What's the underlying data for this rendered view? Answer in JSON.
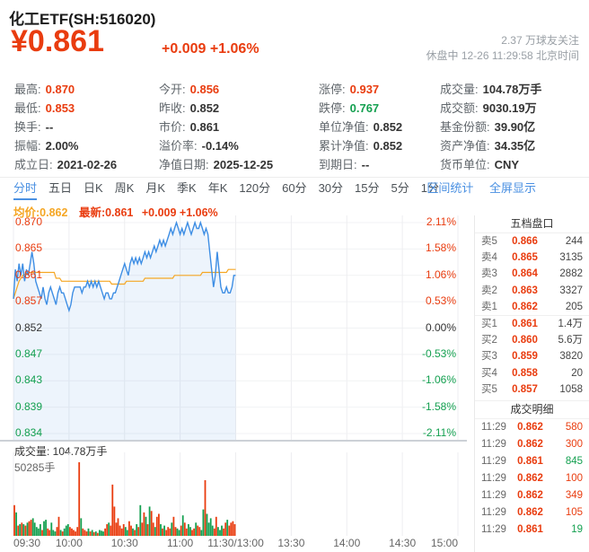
{
  "header": {
    "title": "化工ETF(SH:516020)",
    "price": "¥0.861",
    "change": "+0.009 +1.06%",
    "followers": "2.37 万球友关注",
    "market_status": "休盘中 12-26 11:29:58 北京时间"
  },
  "stats": {
    "columns": [
      {
        "items": [
          {
            "label": "最高:",
            "value": "0.870",
            "cls": "up"
          },
          {
            "label": "最低:",
            "value": "0.853",
            "cls": "up"
          },
          {
            "label": "换手:",
            "value": "--",
            "cls": ""
          },
          {
            "label": "振幅:",
            "value": "2.00%",
            "cls": ""
          },
          {
            "label": "成立日:",
            "value": "2021-02-26",
            "cls": ""
          }
        ]
      },
      {
        "items": [
          {
            "label": "今开:",
            "value": "0.856",
            "cls": "up"
          },
          {
            "label": "昨收:",
            "value": "0.852",
            "cls": ""
          },
          {
            "label": "市价:",
            "value": "0.861",
            "cls": ""
          },
          {
            "label": "溢价率:",
            "value": "-0.14%",
            "cls": ""
          },
          {
            "label": "净值日期:",
            "value": "2025-12-25",
            "cls": ""
          }
        ]
      },
      {
        "items": [
          {
            "label": "涨停:",
            "value": "0.937",
            "cls": "up"
          },
          {
            "label": "跌停:",
            "value": "0.767",
            "cls": "down"
          },
          {
            "label": "单位净值:",
            "value": "0.852",
            "cls": ""
          },
          {
            "label": "累计净值:",
            "value": "0.852",
            "cls": ""
          },
          {
            "label": "到期日:",
            "value": "--",
            "cls": ""
          }
        ]
      },
      {
        "items": [
          {
            "label": "成交量:",
            "value": "104.78万手",
            "cls": ""
          },
          {
            "label": "成交额:",
            "value": "9030.19万",
            "cls": ""
          },
          {
            "label": "基金份额:",
            "value": "39.90亿",
            "cls": ""
          },
          {
            "label": "资产净值:",
            "value": "34.35亿",
            "cls": ""
          },
          {
            "label": "货币单位:",
            "value": "CNY",
            "cls": ""
          }
        ]
      }
    ]
  },
  "tabs": {
    "items": [
      "分时",
      "五日",
      "日K",
      "周K",
      "月K",
      "季K",
      "年K",
      "120分",
      "60分",
      "30分",
      "15分",
      "5分",
      "1分"
    ],
    "active_index": 0,
    "range_stat": "区间统计",
    "fullscreen": "全屏显示"
  },
  "legend": {
    "avg": "均价:0.862",
    "last": "最新:0.861",
    "change": "+0.009 +1.06%"
  },
  "chart_data": {
    "type": "line",
    "title": "化工ETF(SH:516020) 分时",
    "prev_close": 0.852,
    "price_range": [
      0.834,
      0.87
    ],
    "minutes_total": 240,
    "x_session_labels": [
      "09:30",
      "10:00",
      "10:30",
      "11:00",
      "11:30/13:00",
      "13:30",
      "14:00",
      "14:30",
      "15:00"
    ],
    "y_ticks": [
      {
        "price": "0.870",
        "pct": "2.11%",
        "cls": "up"
      },
      {
        "price": "0.865",
        "pct": "1.58%",
        "cls": "up"
      },
      {
        "price": "0.861",
        "pct": "1.06%",
        "cls": "up"
      },
      {
        "price": "0.857",
        "pct": "0.53%",
        "cls": "up"
      },
      {
        "price": "0.852",
        "pct": "0.00%",
        "cls": "flat"
      },
      {
        "price": "0.847",
        "pct": "-0.53%",
        "cls": "down"
      },
      {
        "price": "0.843",
        "pct": "-1.06%",
        "cls": "down"
      },
      {
        "price": "0.839",
        "pct": "-1.58%",
        "cls": "down"
      },
      {
        "price": "0.834",
        "pct": "-2.11%",
        "cls": "down"
      }
    ],
    "series": [
      {
        "name": "price",
        "color": "#3e8ee4",
        "values": [
          0.857,
          0.862,
          0.86,
          0.863,
          0.861,
          0.863,
          0.86,
          0.862,
          0.861,
          0.863,
          0.865,
          0.863,
          0.86,
          0.859,
          0.858,
          0.857,
          0.859,
          0.857,
          0.856,
          0.858,
          0.859,
          0.858,
          0.857,
          0.856,
          0.858,
          0.859,
          0.858,
          0.858,
          0.857,
          0.856,
          0.855,
          0.856,
          0.858,
          0.859,
          0.859,
          0.859,
          0.859,
          0.858,
          0.859,
          0.859,
          0.86,
          0.859,
          0.86,
          0.859,
          0.86,
          0.859,
          0.86,
          0.859,
          0.858,
          0.857,
          0.858,
          0.858,
          0.857,
          0.857,
          0.858,
          0.858,
          0.859,
          0.86,
          0.861,
          0.862,
          0.863,
          0.862,
          0.861,
          0.863,
          0.864,
          0.863,
          0.864,
          0.863,
          0.864,
          0.863,
          0.864,
          0.865,
          0.864,
          0.865,
          0.864,
          0.865,
          0.866,
          0.865,
          0.866,
          0.867,
          0.866,
          0.867,
          0.866,
          0.867,
          0.868,
          0.869,
          0.868,
          0.869,
          0.87,
          0.869,
          0.868,
          0.869,
          0.868,
          0.869,
          0.87,
          0.869,
          0.868,
          0.869,
          0.87,
          0.869,
          0.869,
          0.87,
          0.869,
          0.868,
          0.869,
          0.868,
          0.865,
          0.862,
          0.859,
          0.861,
          0.865,
          0.862,
          0.859,
          0.858,
          0.858,
          0.859,
          0.858,
          0.858,
          0.859,
          0.861,
          0.861
        ]
      },
      {
        "name": "avg",
        "color": "#f5a623",
        "values": [
          0.857,
          0.858,
          0.859,
          0.86,
          0.8605,
          0.861,
          0.8612,
          0.8613,
          0.8614,
          0.8615,
          0.8615,
          0.8615,
          0.8615,
          0.8615,
          0.8615,
          0.8615,
          0.8615,
          0.8615,
          0.8615,
          0.8615,
          0.8615,
          0.8615,
          0.8615,
          0.8605,
          0.8605,
          0.8605,
          0.86,
          0.86,
          0.86,
          0.86,
          0.86,
          0.86,
          0.86,
          0.86,
          0.86,
          0.86,
          0.86,
          0.86,
          0.86,
          0.86,
          0.86,
          0.86,
          0.86,
          0.86,
          0.86,
          0.86,
          0.86,
          0.86,
          0.86,
          0.86,
          0.86,
          0.86,
          0.86,
          0.8595,
          0.8595,
          0.8595,
          0.8595,
          0.8595,
          0.8595,
          0.8595,
          0.8595,
          0.86,
          0.86,
          0.86,
          0.86,
          0.86,
          0.86,
          0.86,
          0.86,
          0.86,
          0.86,
          0.8605,
          0.8605,
          0.8605,
          0.8605,
          0.8605,
          0.8605,
          0.8605,
          0.8605,
          0.8605,
          0.8605,
          0.8605,
          0.8605,
          0.8605,
          0.8605,
          0.8605,
          0.8605,
          0.861,
          0.861,
          0.861,
          0.861,
          0.861,
          0.861,
          0.861,
          0.861,
          0.861,
          0.861,
          0.861,
          0.861,
          0.861,
          0.861,
          0.861,
          0.8615,
          0.8615,
          0.8615,
          0.8615,
          0.8615,
          0.8615,
          0.8615,
          0.8615,
          0.8615,
          0.8615,
          0.8615,
          0.8615,
          0.8615,
          0.8615,
          0.862,
          0.862,
          0.862,
          0.862,
          0.862
        ]
      }
    ],
    "volume": {
      "title": "成交量: 104.78万手",
      "max_label": "50285手",
      "max": 50285,
      "values": [
        21000,
        16000,
        7000,
        8000,
        9000,
        8000,
        7000,
        9000,
        10000,
        11000,
        12000,
        9000,
        6000,
        5000,
        8000,
        4000,
        10000,
        11000,
        5000,
        4000,
        9000,
        4000,
        3000,
        6000,
        13000,
        4000,
        3000,
        5000,
        7000,
        8000,
        6000,
        5000,
        4000,
        3000,
        6000,
        50285,
        12000,
        5000,
        4000,
        3000,
        5000,
        3000,
        4000,
        2500,
        3000,
        2000,
        4000,
        3500,
        3000,
        5000,
        8000,
        9000,
        7000,
        35000,
        20000,
        9000,
        12000,
        7000,
        5000,
        8000,
        6000,
        4000,
        10000,
        7000,
        5000,
        4000,
        8000,
        6000,
        21000,
        9000,
        16000,
        13000,
        8000,
        20000,
        17000,
        9000,
        6000,
        13000,
        15000,
        8000,
        5000,
        7000,
        4000,
        6000,
        5000,
        9000,
        13000,
        6000,
        5000,
        4000,
        7000,
        14000,
        9000,
        5000,
        8000,
        6000,
        4000,
        5000,
        9000,
        7000,
        6000,
        4000,
        18000,
        38000,
        15000,
        9000,
        12000,
        7000,
        5000,
        13000,
        6000,
        4000,
        7000,
        5000,
        9000,
        11000,
        7000,
        9000,
        10000,
        8000
      ]
    }
  },
  "order_book": {
    "title": "五档盘口",
    "asks": [
      {
        "side": "卖5",
        "price": "0.866",
        "vol": "244"
      },
      {
        "side": "卖4",
        "price": "0.865",
        "vol": "3135"
      },
      {
        "side": "卖3",
        "price": "0.864",
        "vol": "2882"
      },
      {
        "side": "卖2",
        "price": "0.863",
        "vol": "3327"
      },
      {
        "side": "卖1",
        "price": "0.862",
        "vol": "205"
      }
    ],
    "bids": [
      {
        "side": "买1",
        "price": "0.861",
        "vol": "1.4万"
      },
      {
        "side": "买2",
        "price": "0.860",
        "vol": "5.6万"
      },
      {
        "side": "买3",
        "price": "0.859",
        "vol": "3820"
      },
      {
        "side": "买4",
        "price": "0.858",
        "vol": "20"
      },
      {
        "side": "买5",
        "price": "0.857",
        "vol": "1058"
      }
    ]
  },
  "trades": {
    "title": "成交明细",
    "rows": [
      {
        "time": "11:29",
        "price": "0.862",
        "vol": "580",
        "cls": "up"
      },
      {
        "time": "11:29",
        "price": "0.862",
        "vol": "300",
        "cls": "up"
      },
      {
        "time": "11:29",
        "price": "0.861",
        "vol": "845",
        "cls": "down"
      },
      {
        "time": "11:29",
        "price": "0.862",
        "vol": "100",
        "cls": "up"
      },
      {
        "time": "11:29",
        "price": "0.862",
        "vol": "349",
        "cls": "up"
      },
      {
        "time": "11:29",
        "price": "0.862",
        "vol": "105",
        "cls": "up"
      },
      {
        "time": "11:29",
        "price": "0.861",
        "vol": "19",
        "cls": "down"
      }
    ]
  }
}
